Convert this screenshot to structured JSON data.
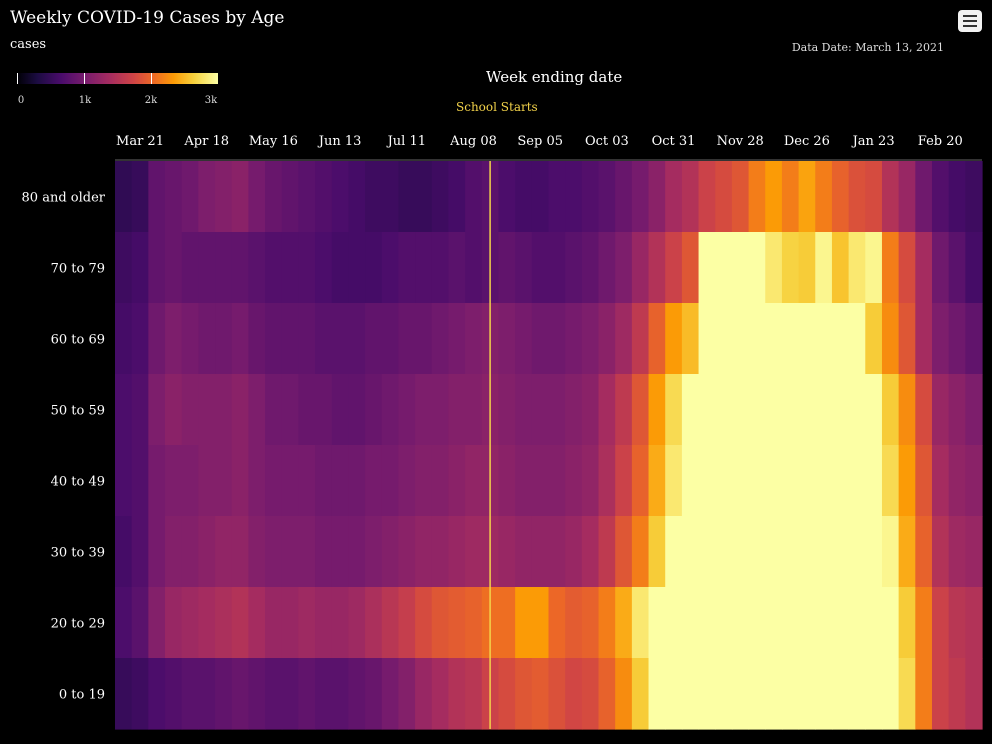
{
  "title": "Weekly COVID-19 Cases by Age",
  "legend": {
    "title": "cases",
    "ticks": [
      "0",
      "1k",
      "2k",
      "3k"
    ],
    "values": [
      0,
      1000,
      2000,
      3000
    ]
  },
  "data_date": "Data Date: March 13, 2021",
  "chart_data": {
    "type": "heatmap",
    "title": "Weekly COVID-19 Cases by Age",
    "xlabel": "Week ending date",
    "ylabel": "",
    "x_tick_labels": [
      "Mar 21",
      "Apr 18",
      "May 16",
      "Jun 13",
      "Jul 11",
      "Aug 08",
      "Sep 05",
      "Oct 03",
      "Oct 31",
      "Nov 28",
      "Dec 26",
      "Jan 23",
      "Feb 20"
    ],
    "x_tick_index": [
      1,
      5,
      9,
      13,
      17,
      21,
      25,
      29,
      33,
      37,
      41,
      45,
      49
    ],
    "annotation": {
      "label": "School Starts",
      "week_index": 22.5
    },
    "color_scale": "inferno",
    "color_range": [
      0,
      3000
    ],
    "rows": [
      {
        "label": "80 and older",
        "values": [
          150,
          200,
          500,
          550,
          600,
          700,
          750,
          800,
          650,
          550,
          500,
          450,
          400,
          350,
          300,
          250,
          250,
          200,
          200,
          250,
          300,
          400,
          450,
          350,
          300,
          300,
          350,
          350,
          400,
          450,
          550,
          650,
          800,
          1000,
          1100,
          1300,
          1400,
          1500,
          1800,
          2000,
          1800,
          2050,
          1800,
          1600,
          1450,
          1400,
          1100,
          900,
          600,
          400,
          300,
          250
        ]
      },
      {
        "label": "70 to 79",
        "values": [
          250,
          300,
          500,
          550,
          500,
          500,
          500,
          500,
          450,
          400,
          400,
          400,
          350,
          300,
          300,
          300,
          350,
          400,
          400,
          400,
          450,
          400,
          450,
          500,
          450,
          400,
          400,
          450,
          500,
          600,
          700,
          900,
          1100,
          1300,
          1500,
          2700,
          3000,
          2700,
          2800,
          2500,
          2350,
          2300,
          2600,
          2250,
          2500,
          2600,
          1800,
          1400,
          1000,
          600,
          450,
          300
        ]
      },
      {
        "label": "60 to 69",
        "values": [
          300,
          350,
          600,
          700,
          650,
          600,
          600,
          650,
          550,
          500,
          500,
          500,
          450,
          450,
          450,
          500,
          500,
          550,
          550,
          600,
          650,
          700,
          750,
          700,
          650,
          600,
          600,
          650,
          700,
          800,
          950,
          1200,
          1600,
          2000,
          2200,
          2850,
          3000,
          3000,
          3000,
          3000,
          3000,
          3000,
          3000,
          3000,
          2800,
          2300,
          1900,
          1500,
          1000,
          700,
          600,
          500
        ]
      },
      {
        "label": "50 to 59",
        "values": [
          350,
          400,
          700,
          800,
          750,
          750,
          750,
          800,
          700,
          600,
          600,
          550,
          550,
          500,
          500,
          550,
          600,
          650,
          700,
          700,
          750,
          750,
          800,
          750,
          700,
          700,
          700,
          750,
          800,
          1000,
          1200,
          1500,
          2000,
          2400,
          2700,
          2900,
          3000,
          3000,
          3000,
          3000,
          3000,
          3000,
          3000,
          3000,
          3000,
          3000,
          2300,
          1900,
          1400,
          900,
          800,
          700
        ]
      },
      {
        "label": "40 to 49",
        "values": [
          350,
          400,
          650,
          700,
          700,
          750,
          750,
          800,
          700,
          650,
          650,
          650,
          600,
          600,
          600,
          650,
          650,
          700,
          750,
          750,
          800,
          850,
          850,
          800,
          750,
          750,
          750,
          800,
          850,
          1050,
          1300,
          1600,
          2100,
          2500,
          2800,
          2900,
          3000,
          3000,
          3000,
          3000,
          3000,
          3000,
          3000,
          3000,
          3000,
          3000,
          2400,
          2000,
          1500,
          1000,
          850,
          800
        ]
      },
      {
        "label": "30 to 39",
        "values": [
          300,
          400,
          650,
          750,
          750,
          800,
          850,
          850,
          750,
          700,
          700,
          700,
          650,
          650,
          650,
          700,
          750,
          800,
          850,
          850,
          900,
          950,
          950,
          900,
          850,
          850,
          850,
          900,
          1000,
          1200,
          1500,
          1800,
          2300,
          2700,
          2900,
          3000,
          3000,
          3000,
          3000,
          3000,
          3000,
          3000,
          3000,
          3000,
          3000,
          3000,
          2600,
          2100,
          1600,
          1100,
          950,
          900
        ]
      },
      {
        "label": "20 to 29",
        "values": [
          350,
          450,
          750,
          900,
          950,
          1000,
          1050,
          1100,
          1000,
          900,
          900,
          950,
          900,
          900,
          950,
          1050,
          1150,
          1250,
          1400,
          1500,
          1550,
          1600,
          1700,
          1700,
          2000,
          2000,
          1650,
          1550,
          1600,
          1800,
          2100,
          2500,
          2800,
          3000,
          3000,
          3000,
          3000,
          3000,
          3000,
          3000,
          3000,
          3000,
          3000,
          3000,
          3000,
          3000,
          2800,
          2300,
          1800,
          1300,
          1150,
          1100
        ]
      },
      {
        "label": "0 to 19",
        "values": [
          200,
          250,
          350,
          400,
          450,
          450,
          500,
          550,
          500,
          450,
          450,
          500,
          450,
          450,
          500,
          550,
          650,
          750,
          900,
          1000,
          1100,
          1150,
          1300,
          1400,
          1500,
          1550,
          1450,
          1350,
          1400,
          1600,
          1900,
          2300,
          2700,
          3000,
          3000,
          3000,
          3000,
          3000,
          3000,
          3000,
          3000,
          3000,
          3000,
          3000,
          3000,
          3000,
          2900,
          2400,
          1800,
          1300,
          1200,
          1100
        ]
      }
    ]
  }
}
